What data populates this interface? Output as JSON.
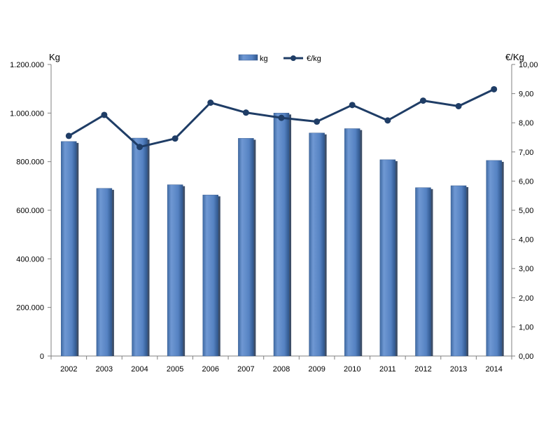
{
  "chart_data": {
    "type": "bar",
    "categories": [
      "2002",
      "2003",
      "2004",
      "2005",
      "2006",
      "2007",
      "2008",
      "2009",
      "2010",
      "2011",
      "2012",
      "2013",
      "2014"
    ],
    "series": [
      {
        "name": "kg",
        "type": "bar",
        "axis": "left",
        "color": "#4f81bd",
        "values": [
          883000,
          690000,
          897000,
          705000,
          663000,
          896000,
          1000000,
          918000,
          936000,
          808000,
          693000,
          701000,
          805000
        ]
      },
      {
        "name": "€/kg",
        "type": "line",
        "axis": "right",
        "color": "#1f3d66",
        "values": [
          7.55,
          8.27,
          7.17,
          7.46,
          8.69,
          8.35,
          8.17,
          8.04,
          8.61,
          8.08,
          8.76,
          8.57,
          9.15
        ]
      }
    ],
    "y_left": {
      "label": "Kg",
      "range": [
        0,
        1200000
      ],
      "ticks": [
        0,
        200000,
        400000,
        600000,
        800000,
        1000000,
        1200000
      ],
      "tick_labels": [
        "0",
        "200.000",
        "400.000",
        "600.000",
        "800.000",
        "1.000.000",
        "1.200.000"
      ]
    },
    "y_right": {
      "label": "€/Kg",
      "range": [
        0,
        10
      ],
      "ticks": [
        0,
        1,
        2,
        3,
        4,
        5,
        6,
        7,
        8,
        9,
        10
      ],
      "tick_labels": [
        "0,00",
        "1,00",
        "2,00",
        "3,00",
        "4,00",
        "5,00",
        "6,00",
        "7,00",
        "8,00",
        "9,00",
        "10,00"
      ]
    },
    "legend": {
      "position": "top-center"
    },
    "grid": false
  }
}
